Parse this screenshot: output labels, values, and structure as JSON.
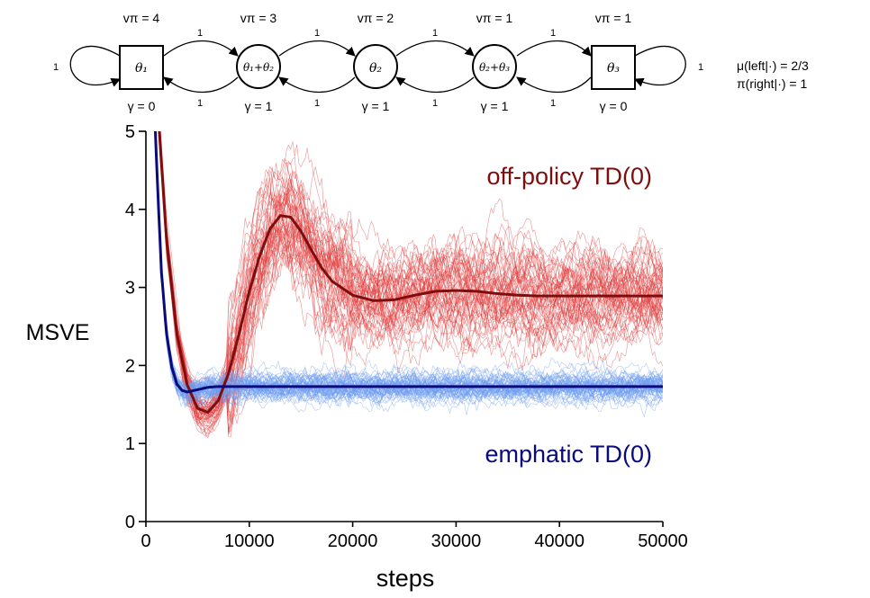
{
  "diagram": {
    "states": [
      {
        "label": "θ₁",
        "shape": "square",
        "v_pi": "vπ = 4",
        "gamma": "γ = 0"
      },
      {
        "label": "θ₁+θ₂",
        "shape": "circle",
        "v_pi": "vπ = 3",
        "gamma": "γ = 1"
      },
      {
        "label": "θ₂",
        "shape": "circle",
        "v_pi": "vπ = 2",
        "gamma": "γ = 1"
      },
      {
        "label": "θ₂+θ₃",
        "shape": "circle",
        "v_pi": "vπ = 1",
        "gamma": "γ = 1"
      },
      {
        "label": "θ₃",
        "shape": "square",
        "v_pi": "vπ = 1",
        "gamma": "γ = 0"
      }
    ],
    "reward_label": "1",
    "policy_text": [
      "μ(left|·) = 2/3",
      "π(right|·) = 1"
    ]
  },
  "chart_data": {
    "type": "line",
    "ylabel": "MSVE",
    "xlabel": "steps",
    "xlim": [
      0,
      50000
    ],
    "ylim": [
      0,
      5
    ],
    "xticks": [
      "0",
      "10000",
      "20000",
      "30000",
      "40000",
      "50000"
    ],
    "yticks": [
      "0",
      "1",
      "2",
      "3",
      "4",
      "5"
    ],
    "grid": false,
    "series": [
      {
        "name": "off-policy TD(0)",
        "mean_color": "#7f0d0d",
        "runs_color": "#e03a3a",
        "x": [
          0,
          1000,
          2000,
          3000,
          4000,
          5000,
          6000,
          7000,
          8000,
          9000,
          10000,
          11000,
          12000,
          13000,
          14000,
          15000,
          16000,
          17000,
          18000,
          20000,
          22000,
          24000,
          26000,
          28000,
          30000,
          32000,
          34000,
          36000,
          38000,
          40000,
          42000,
          44000,
          46000,
          48000,
          50000
        ],
        "mean": [
          9,
          5.6,
          3.6,
          2.4,
          1.75,
          1.45,
          1.4,
          1.55,
          1.9,
          2.4,
          2.95,
          3.4,
          3.75,
          3.92,
          3.9,
          3.72,
          3.48,
          3.25,
          3.08,
          2.9,
          2.83,
          2.84,
          2.9,
          2.95,
          2.96,
          2.95,
          2.92,
          2.9,
          2.89,
          2.89,
          2.89,
          2.89,
          2.89,
          2.89,
          2.89
        ]
      },
      {
        "name": "emphatic TD(0)",
        "mean_color": "#0a0a7a",
        "runs_color": "#6e9cf0",
        "x": [
          0,
          500,
          1000,
          1500,
          2000,
          2500,
          3000,
          3500,
          4000,
          5000,
          6000,
          7000,
          8000,
          10000,
          20000,
          30000,
          40000,
          50000
        ],
        "mean": [
          9,
          6.5,
          4.7,
          3.2,
          2.4,
          1.98,
          1.76,
          1.68,
          1.66,
          1.69,
          1.72,
          1.73,
          1.73,
          1.73,
          1.73,
          1.73,
          1.73,
          1.73
        ]
      }
    ]
  }
}
